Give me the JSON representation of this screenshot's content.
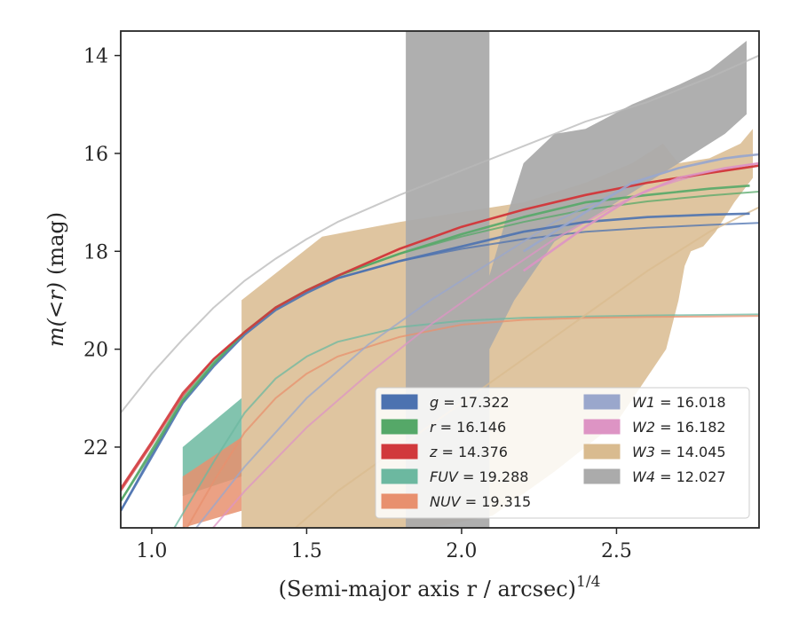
{
  "chart_data": {
    "type": "line",
    "title": "",
    "xlabel": "(Semi-major axis r / arcsec)",
    "xlabel_exponent": "1/4",
    "ylabel_math": "m(<r)",
    "ylabel_unit": "(mag)",
    "xlim": [
      0.9,
      2.96
    ],
    "ylim": [
      23.65,
      13.5
    ],
    "y_inverted": true,
    "xticks": [
      1.0,
      1.5,
      2.0,
      2.5
    ],
    "xtick_labels": [
      "1.0",
      "1.5",
      "2.0",
      "2.5"
    ],
    "yticks": [
      14,
      16,
      18,
      20,
      22
    ],
    "ytick_labels": [
      "14",
      "16",
      "18",
      "20",
      "22"
    ],
    "grid": false,
    "legend": {
      "placement": "lower-right",
      "columns": 2,
      "entries": [
        {
          "band": "g",
          "value": "17.322",
          "color": "#4c72b0"
        },
        {
          "band": "r",
          "value": "16.146",
          "color": "#55a868"
        },
        {
          "band": "z",
          "value": "14.376",
          "color": "#d1393c"
        },
        {
          "band": "FUV",
          "value": "19.288",
          "color": "#6cb8a0"
        },
        {
          "band": "NUV",
          "value": "19.315",
          "color": "#e8906e"
        },
        {
          "band": "W1",
          "value": "16.018",
          "color": "#9aa7cc"
        },
        {
          "band": "W2",
          "value": "16.182",
          "color": "#dd94c4"
        },
        {
          "band": "W3",
          "value": "14.045",
          "color": "#d9bb8f"
        },
        {
          "band": "W4",
          "value": "12.027",
          "color": "#ababab"
        }
      ]
    },
    "model_curves": [
      {
        "band": "g",
        "color": "#4c72b0",
        "x": [
          0.9,
          1.0,
          1.1,
          1.2,
          1.3,
          1.4,
          1.5,
          1.6,
          1.8,
          2.0,
          2.2,
          2.4,
          2.6,
          2.8,
          2.96
        ],
        "y": [
          23.3,
          22.15,
          21.05,
          20.3,
          19.65,
          19.15,
          18.8,
          18.55,
          18.2,
          17.95,
          17.75,
          17.6,
          17.52,
          17.46,
          17.42
        ]
      },
      {
        "band": "r",
        "color": "#55a868",
        "x": [
          0.9,
          1.0,
          1.1,
          1.2,
          1.3,
          1.4,
          1.5,
          1.6,
          1.8,
          2.0,
          2.2,
          2.4,
          2.6,
          2.8,
          2.96
        ],
        "y": [
          23.1,
          22.05,
          21.0,
          20.25,
          19.65,
          19.15,
          18.8,
          18.5,
          18.05,
          17.7,
          17.4,
          17.15,
          16.98,
          16.86,
          16.78
        ]
      },
      {
        "band": "z",
        "color": "#d1393c",
        "x": [
          0.9,
          1.0,
          1.1,
          1.2,
          1.3,
          1.4,
          1.5,
          1.6,
          1.8,
          2.0,
          2.2,
          2.4,
          2.6,
          2.8,
          2.96
        ],
        "y": [
          22.9,
          21.95,
          20.95,
          20.2,
          19.65,
          19.15,
          18.8,
          18.5,
          17.95,
          17.5,
          17.15,
          16.85,
          16.6,
          16.4,
          16.25
        ]
      },
      {
        "band": "FUV",
        "color": "#6cb8a0",
        "x": [
          1.04,
          1.2,
          1.3,
          1.4,
          1.5,
          1.6,
          1.8,
          2.0,
          2.2,
          2.4,
          2.6,
          2.8,
          2.96
        ],
        "y": [
          24.0,
          22.3,
          21.3,
          20.6,
          20.15,
          19.85,
          19.55,
          19.42,
          19.36,
          19.33,
          19.31,
          19.3,
          19.29
        ]
      },
      {
        "band": "NUV",
        "color": "#e8906e",
        "x": [
          1.1,
          1.2,
          1.3,
          1.4,
          1.5,
          1.6,
          1.8,
          2.0,
          2.2,
          2.4,
          2.6,
          2.8,
          2.96
        ],
        "y": [
          23.8,
          22.7,
          21.7,
          21.0,
          20.5,
          20.15,
          19.75,
          19.5,
          19.4,
          19.36,
          19.34,
          19.33,
          19.32
        ]
      },
      {
        "band": "W1",
        "color": "#9aa7cc",
        "x": [
          1.1,
          1.3,
          1.5,
          1.7,
          1.9,
          2.1,
          2.3,
          2.5,
          2.6,
          2.7,
          2.8,
          2.9,
          2.96
        ],
        "y": [
          24.0,
          22.4,
          21.0,
          19.9,
          19.0,
          18.2,
          17.4,
          16.8,
          16.5,
          16.3,
          16.15,
          16.05,
          16.02
        ]
      },
      {
        "band": "W2",
        "color": "#dd94c4",
        "x": [
          1.15,
          1.3,
          1.5,
          1.7,
          1.9,
          2.1,
          2.3,
          2.5,
          2.6,
          2.7,
          2.8,
          2.9,
          2.96
        ],
        "y": [
          24.0,
          22.9,
          21.6,
          20.5,
          19.5,
          18.6,
          17.75,
          17.05,
          16.75,
          16.55,
          16.38,
          16.26,
          16.2
        ]
      },
      {
        "band": "W3",
        "color": "#d9bb8f",
        "x": [
          1.4,
          1.6,
          1.8,
          2.0,
          2.2,
          2.4,
          2.6,
          2.8,
          2.96
        ],
        "y": [
          24.0,
          22.9,
          22.0,
          21.1,
          20.2,
          19.3,
          18.4,
          17.6,
          17.1
        ]
      },
      {
        "band": "W4",
        "color": "#b8b8b8",
        "x": [
          0.9,
          1.0,
          1.1,
          1.2,
          1.3,
          1.4,
          1.5,
          1.6,
          1.8,
          2.0,
          2.2,
          2.4,
          2.6,
          2.8,
          2.96
        ],
        "y": [
          21.3,
          20.5,
          19.8,
          19.15,
          18.6,
          18.15,
          17.75,
          17.4,
          16.85,
          16.35,
          15.85,
          15.35,
          14.95,
          14.45,
          14.0
        ]
      }
    ],
    "observed_bands": [
      {
        "band": "W3",
        "color": "#d9bb8f",
        "x": [
          1.29,
          1.55,
          1.8,
          2.0,
          2.2,
          2.4,
          2.55,
          2.65,
          2.7,
          2.8,
          2.9,
          2.94,
          2.94,
          2.88,
          2.82,
          2.78,
          2.74,
          2.72,
          2.7,
          2.66,
          2.5,
          2.3,
          2.1,
          1.9,
          1.7,
          1.5,
          1.29
        ],
        "upper": [
          19.0,
          17.7,
          17.4,
          17.2,
          17.0,
          16.6,
          16.2,
          15.8,
          16.2,
          16.1,
          15.8,
          15.5,
          16.5,
          17.0,
          17.6,
          17.9,
          18.0,
          18.3,
          19.0,
          20.0,
          21.5,
          22.5,
          23.4,
          23.65,
          23.65,
          23.65,
          23.65
        ]
      },
      {
        "band": "W4",
        "color": "#ababab",
        "x": [
          1.82,
          1.82,
          2.09,
          2.09,
          2.17,
          2.3,
          2.5,
          2.7,
          2.85,
          2.92,
          2.92,
          2.8,
          2.7,
          2.55,
          2.4,
          2.3,
          2.2,
          2.15,
          2.09,
          2.09,
          1.82
        ],
        "upper": [
          13.5,
          23.65,
          23.65,
          20.0,
          19.0,
          17.8,
          17.0,
          16.2,
          15.6,
          15.2,
          13.7,
          14.3,
          14.6,
          15.0,
          15.5,
          15.6,
          16.2,
          17.2,
          18.5,
          13.5,
          13.5
        ]
      },
      {
        "band": "FUV",
        "color": "#6cb8a0",
        "x": [
          1.1,
          1.29,
          1.29,
          1.1
        ],
        "upper": [
          22.0,
          21.0,
          22.6,
          23.0
        ]
      },
      {
        "band": "NUV",
        "color": "#e8906e",
        "x": [
          1.1,
          1.29,
          1.29,
          1.1
        ],
        "upper": [
          22.6,
          21.8,
          23.3,
          23.65
        ]
      }
    ],
    "observed_curves": [
      {
        "band": "g",
        "color": "#4c72b0",
        "x": [
          0.9,
          1.0,
          1.1,
          1.2,
          1.3,
          1.4,
          1.5,
          1.6,
          1.8,
          2.0,
          2.2,
          2.4,
          2.6,
          2.8,
          2.93
        ],
        "y": [
          23.3,
          22.2,
          21.1,
          20.35,
          19.7,
          19.2,
          18.85,
          18.55,
          18.2,
          17.9,
          17.6,
          17.4,
          17.3,
          17.25,
          17.23
        ]
      },
      {
        "band": "r",
        "color": "#55a868",
        "x": [
          0.9,
          1.0,
          1.1,
          1.2,
          1.3,
          1.4,
          1.5,
          1.6,
          1.8,
          2.0,
          2.2,
          2.4,
          2.6,
          2.8,
          2.93
        ],
        "y": [
          23.1,
          22.1,
          21.05,
          20.3,
          19.65,
          19.15,
          18.8,
          18.5,
          18.05,
          17.65,
          17.3,
          17.0,
          16.85,
          16.72,
          16.66
        ]
      },
      {
        "band": "z",
        "color": "#d1393c",
        "x": [
          0.9,
          1.0,
          1.1,
          1.2,
          1.3,
          1.4,
          1.5,
          1.6,
          1.8,
          2.0,
          2.2,
          2.4,
          2.6,
          2.8,
          2.96
        ],
        "y": [
          22.85,
          21.9,
          20.9,
          20.2,
          19.65,
          19.15,
          18.8,
          18.5,
          17.95,
          17.5,
          17.15,
          16.85,
          16.6,
          16.4,
          16.25
        ]
      },
      {
        "band": "W1",
        "color": "#9aa7cc",
        "x": [
          2.2,
          2.4,
          2.55,
          2.7,
          2.85,
          2.96
        ],
        "y": [
          18.0,
          17.2,
          16.6,
          16.3,
          16.1,
          16.02
        ]
      },
      {
        "band": "W2",
        "color": "#dd94c4",
        "x": [
          2.2,
          2.4,
          2.55,
          2.7,
          2.85,
          2.96
        ],
        "y": [
          18.4,
          17.5,
          16.9,
          16.5,
          16.3,
          16.2
        ]
      }
    ]
  }
}
